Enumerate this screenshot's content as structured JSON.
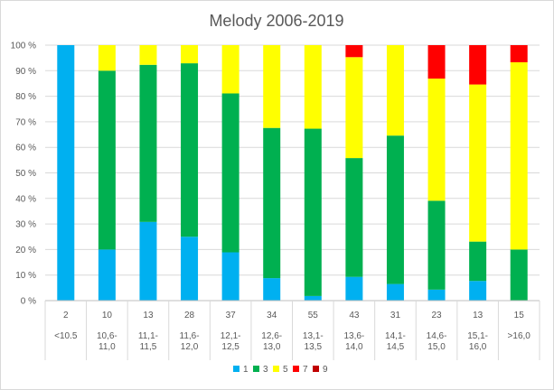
{
  "chart_data": {
    "type": "bar",
    "stacked": true,
    "percent": true,
    "title": "Melody 2006-2019",
    "ylim": [
      0,
      100
    ],
    "yticks": [
      "0 %",
      "10 %",
      "20 %",
      "30 %",
      "40 %",
      "50 %",
      "60 %",
      "70 %",
      "80 %",
      "90 %",
      "100 %"
    ],
    "counts": [
      "2",
      "10",
      "13",
      "28",
      "37",
      "34",
      "55",
      "43",
      "31",
      "23",
      "13",
      "15"
    ],
    "categories": [
      "<10.5",
      "10,6-11,0",
      "11,1-11,5",
      "11,6-12,0",
      "12,1-12,5",
      "12,6-13,0",
      "13,1-13,5",
      "13,6-14,0",
      "14,1-14,5",
      "14,6-15,0",
      "15,1-16,0",
      ">16,0"
    ],
    "series": [
      {
        "name": "1",
        "color": "#00b0f0",
        "values": [
          100,
          20,
          30.8,
          25,
          18.9,
          8.8,
          1.8,
          9.3,
          6.5,
          4.3,
          7.7,
          0
        ]
      },
      {
        "name": "3",
        "color": "#00b050",
        "values": [
          0,
          70,
          61.5,
          67.9,
          62.2,
          58.8,
          65.5,
          46.5,
          58.1,
          34.8,
          15.4,
          20
        ]
      },
      {
        "name": "5",
        "color": "#ffff00",
        "values": [
          0,
          10,
          7.7,
          7.1,
          18.9,
          32.4,
          32.7,
          39.5,
          35.4,
          47.8,
          61.5,
          73.3
        ]
      },
      {
        "name": "7",
        "color": "#ff0000",
        "values": [
          0,
          0,
          0,
          0,
          0,
          0,
          0,
          4.7,
          0,
          13.1,
          15.4,
          6.7
        ]
      },
      {
        "name": "9",
        "color": "#c00000",
        "values": [
          0,
          0,
          0,
          0,
          0,
          0,
          0,
          0,
          0,
          0,
          0,
          0
        ]
      }
    ],
    "grid": true,
    "legend": "bottom"
  }
}
